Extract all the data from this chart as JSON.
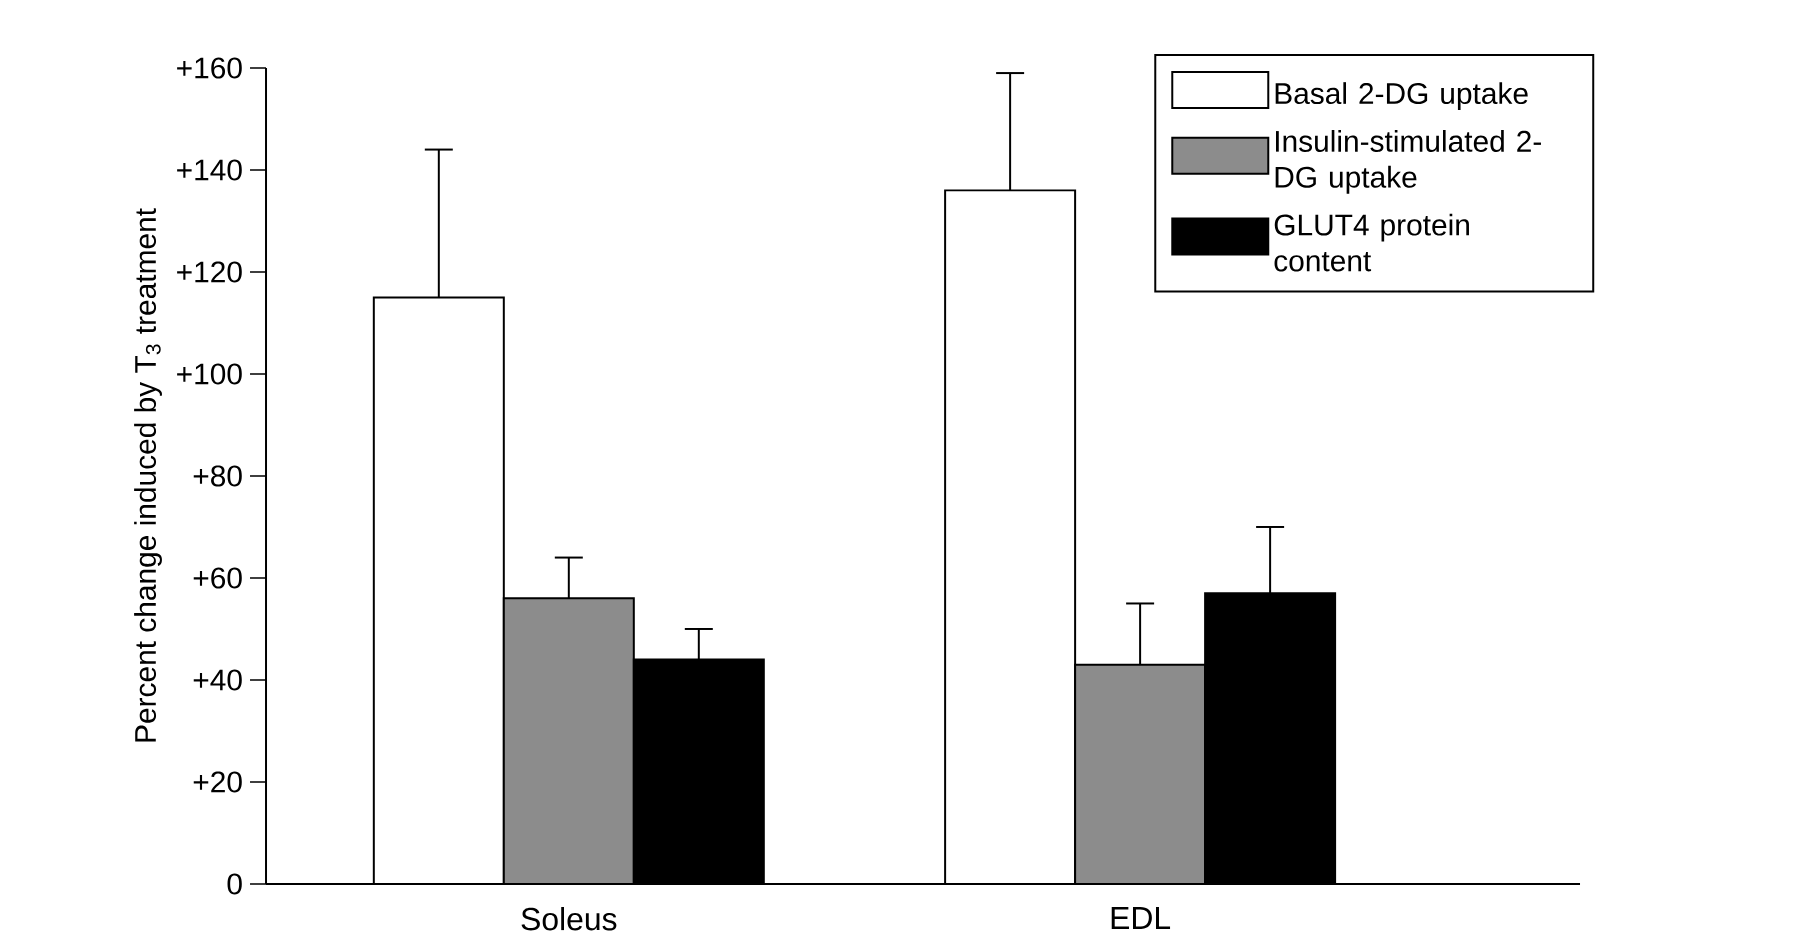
{
  "chart_data": {
    "type": "bar",
    "ylabel": "Percent change induced by T$_{3}$ treatment",
    "categories": [
      "Soleus",
      "EDL"
    ],
    "series": [
      {
        "name": "Basal 2-DG uptake",
        "color": "#ffffff",
        "values": [
          115,
          136
        ],
        "errors": [
          [
            115,
            144
          ],
          [
            136,
            159
          ]
        ]
      },
      {
        "name": "Insulin-stimulated 2-DG uptake",
        "color": "#8c8c8c",
        "values": [
          56,
          43
        ],
        "errors": [
          [
            56,
            64
          ],
          [
            43,
            55
          ]
        ]
      },
      {
        "name": "GLUT4 protein content",
        "color": "#000000",
        "values": [
          44,
          57
        ],
        "errors": [
          [
            44,
            50
          ],
          [
            57,
            70
          ]
        ]
      }
    ],
    "ylim": [
      0,
      160
    ],
    "yticks": [
      0,
      {
        "value": 20,
        "label": "+20"
      },
      {
        "value": 40,
        "label": "+40"
      },
      {
        "value": 60,
        "label": "+60"
      },
      {
        "value": 80,
        "label": "+80"
      },
      {
        "value": 100,
        "label": "+100"
      },
      {
        "value": 120,
        "label": "+120"
      },
      {
        "value": 140,
        "label": "+140"
      },
      {
        "value": 160,
        "label": "+160"
      }
    ],
    "legend": "top right",
    "grid": false
  }
}
